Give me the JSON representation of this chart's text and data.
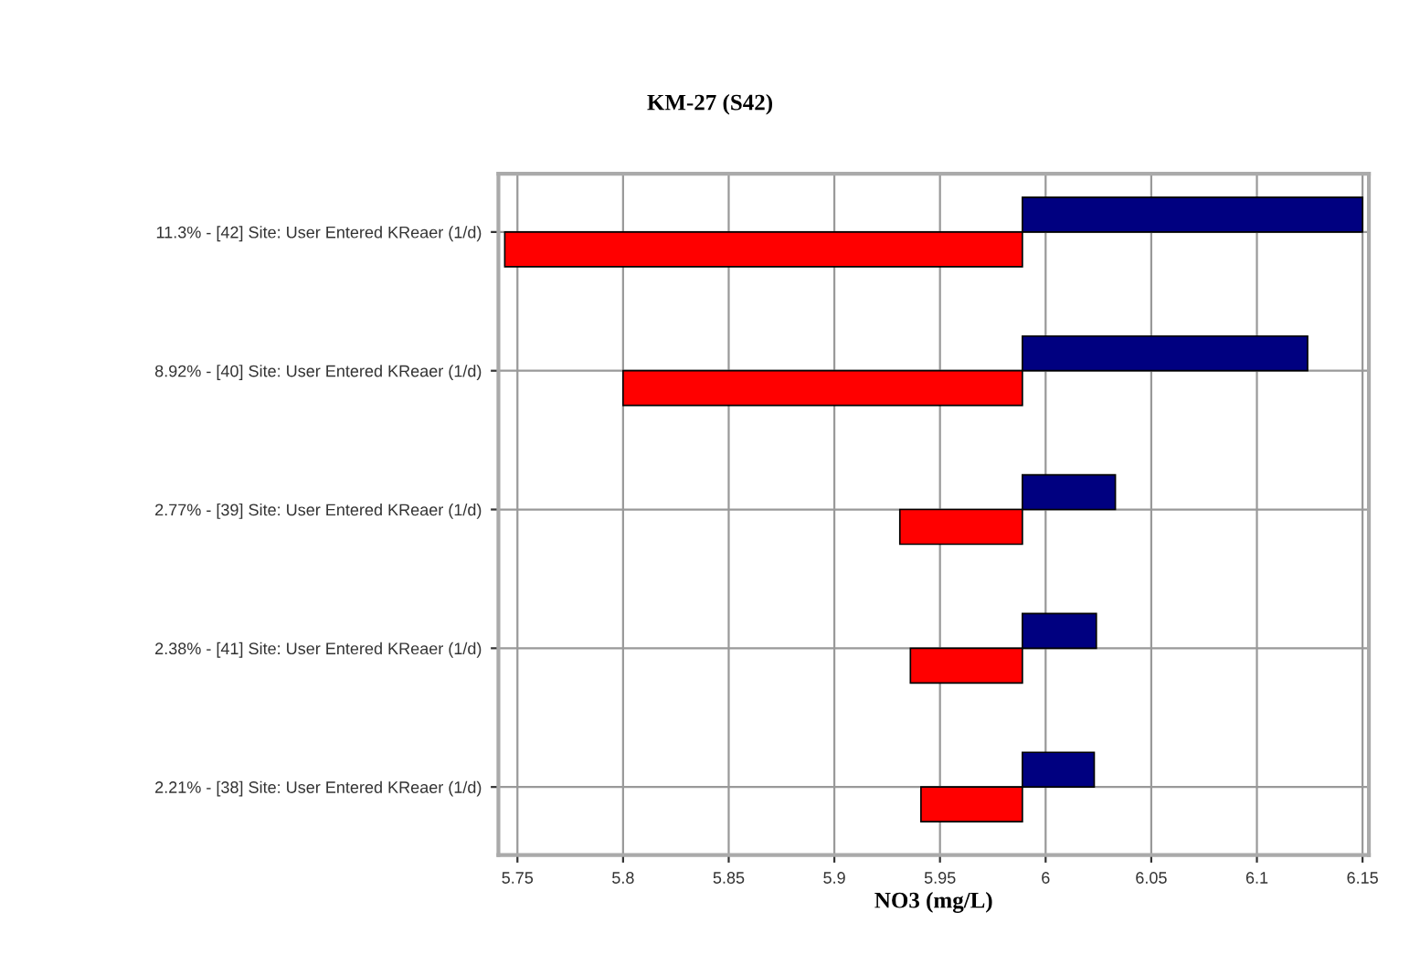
{
  "chart_data": {
    "type": "bar",
    "orientation": "horizontal",
    "title": "KM-27 (S42)",
    "xlabel": "NO3 (mg/L)",
    "categories": [
      "11.3% - [42] Site: User Entered KReaer (1/d)",
      "8.92% - [40] Site: User Entered KReaer (1/d)",
      "2.77% - [39] Site: User Entered KReaer (1/d)",
      "2.38% - [41] Site: User Entered KReaer (1/d)",
      "2.21% - [38] Site: User Entered KReaer (1/d)"
    ],
    "series": [
      {
        "color": "#000080",
        "base": [
          5.989,
          5.989,
          5.989,
          5.989,
          5.989
        ],
        "values": [
          0.161,
          0.135,
          0.044,
          0.035,
          0.034
        ]
      },
      {
        "color": "#ff0000",
        "base": [
          5.989,
          5.989,
          5.989,
          5.989,
          5.989
        ],
        "values": [
          -0.245,
          -0.189,
          -0.058,
          -0.053,
          -0.048
        ]
      }
    ],
    "xlim": [
      5.741,
      6.153
    ],
    "xticks": [
      5.75,
      5.8,
      5.85,
      5.9,
      5.95,
      6,
      6.05,
      6.1,
      6.15
    ],
    "grid": true,
    "legend": false
  }
}
